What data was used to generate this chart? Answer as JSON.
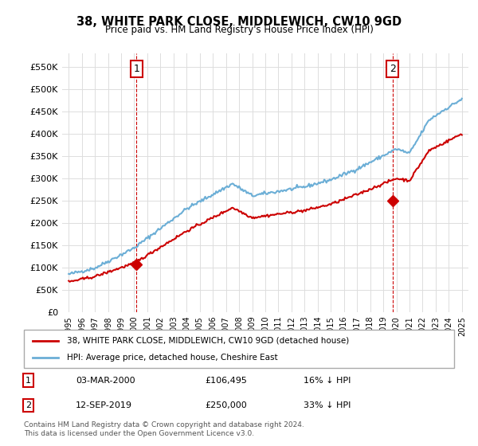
{
  "title": "38, WHITE PARK CLOSE, MIDDLEWICH, CW10 9GD",
  "subtitle": "Price paid vs. HM Land Registry's House Price Index (HPI)",
  "legend_line1": "38, WHITE PARK CLOSE, MIDDLEWICH, CW10 9GD (detached house)",
  "legend_line2": "HPI: Average price, detached house, Cheshire East",
  "annotation1_label": "1",
  "annotation1_date": "03-MAR-2000",
  "annotation1_price": "£106,495",
  "annotation1_hpi": "16% ↓ HPI",
  "annotation2_label": "2",
  "annotation2_date": "12-SEP-2019",
  "annotation2_price": "£250,000",
  "annotation2_hpi": "33% ↓ HPI",
  "footnote": "Contains HM Land Registry data © Crown copyright and database right 2024.\nThis data is licensed under the Open Government Licence v3.0.",
  "sale1_year": 2000.17,
  "sale1_value": 106495,
  "sale2_year": 2019.7,
  "sale2_value": 250000,
  "hpi_color": "#6baed6",
  "price_color": "#cc0000",
  "background_color": "#ffffff",
  "grid_color": "#dddddd",
  "xlim_min": 1994.5,
  "xlim_max": 2025.5,
  "ylim_min": 0,
  "ylim_max": 580000,
  "yticks": [
    0,
    50000,
    100000,
    150000,
    200000,
    250000,
    300000,
    350000,
    400000,
    450000,
    500000,
    550000
  ],
  "xticks": [
    1995,
    1996,
    1997,
    1998,
    1999,
    2000,
    2001,
    2002,
    2003,
    2004,
    2005,
    2006,
    2007,
    2008,
    2009,
    2010,
    2011,
    2012,
    2013,
    2014,
    2015,
    2016,
    2017,
    2018,
    2019,
    2020,
    2021,
    2022,
    2023,
    2024,
    2025
  ]
}
